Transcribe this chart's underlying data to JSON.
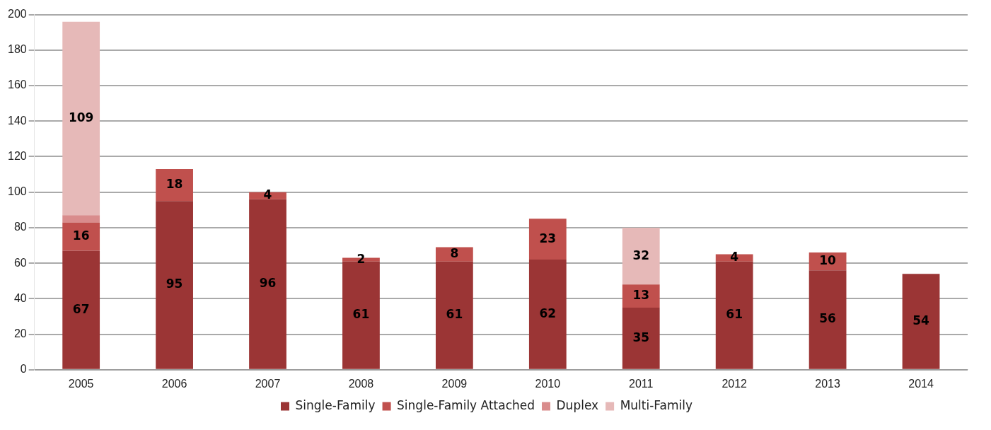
{
  "chart_data": {
    "type": "bar",
    "stacked": true,
    "categories": [
      "2005",
      "2006",
      "2007",
      "2008",
      "2009",
      "2010",
      "2011",
      "2012",
      "2013",
      "2014"
    ],
    "series": [
      {
        "name": "Single-Family",
        "color": "#9b3535",
        "values": [
          67,
          95,
          96,
          61,
          61,
          62,
          35,
          61,
          56,
          54
        ],
        "value_labels": [
          "67",
          "95",
          "96",
          "61",
          "61",
          "62",
          "35",
          "61",
          "56",
          "54"
        ]
      },
      {
        "name": "Single-Family Attached",
        "color": "#c0504d",
        "values": [
          16,
          18,
          4,
          2,
          8,
          23,
          13,
          4,
          10,
          null
        ],
        "value_labels": [
          "16",
          "18",
          "4",
          "2",
          "8",
          "23",
          "13",
          "4",
          "10",
          null
        ]
      },
      {
        "name": "Duplex",
        "color": "#d98c8c",
        "values": [
          4,
          null,
          null,
          null,
          null,
          null,
          null,
          null,
          null,
          null
        ],
        "value_labels": [
          null,
          null,
          null,
          null,
          null,
          null,
          null,
          null,
          null,
          null
        ]
      },
      {
        "name": "Multi-Family",
        "color": "#e6b9b8",
        "values": [
          109,
          null,
          null,
          null,
          null,
          null,
          32,
          null,
          null,
          null
        ],
        "value_labels": [
          "109",
          null,
          null,
          null,
          null,
          null,
          "32",
          null,
          null,
          null
        ]
      }
    ],
    "ylim": [
      0,
      200
    ],
    "yticks": [
      0,
      20,
      40,
      60,
      80,
      100,
      120,
      140,
      160,
      180,
      200
    ],
    "grid": "y",
    "legend": "bottom"
  }
}
